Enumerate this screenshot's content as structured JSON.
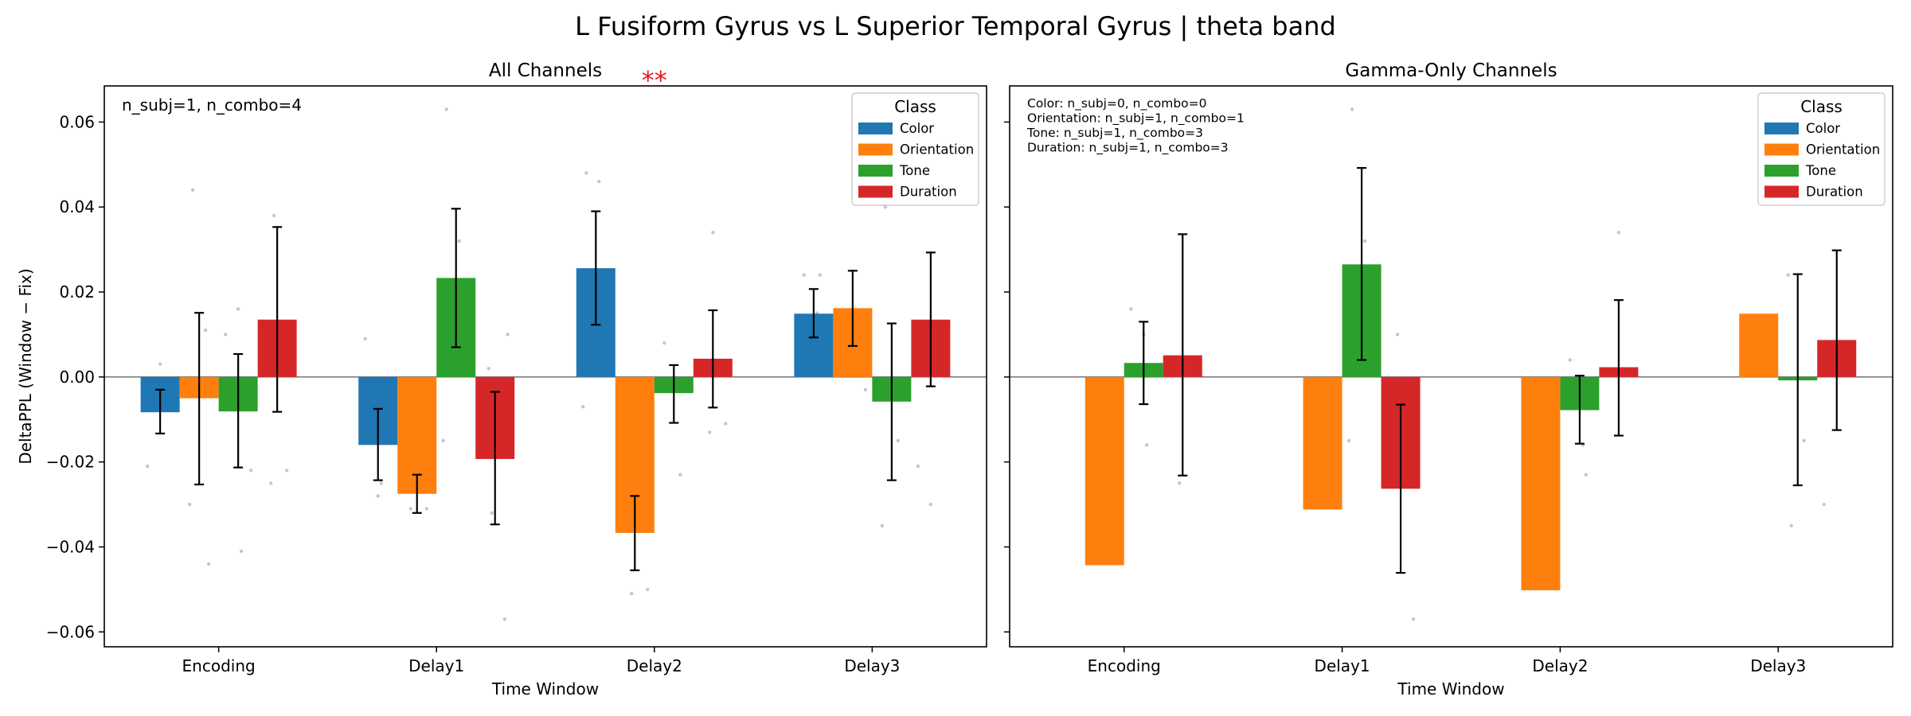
{
  "suptitle": "L Fusiform Gyrus vs L Superior Temporal Gyrus  |  theta band",
  "chart_data": [
    {
      "type": "bar",
      "title": "All Channels",
      "xlabel": "Time Window",
      "ylabel": "DeltaPPL (Window − Fix)",
      "categories": [
        "Encoding",
        "Delay1",
        "Delay2",
        "Delay3"
      ],
      "ylim": [
        -0.0635,
        0.0685
      ],
      "yticks": [
        -0.06,
        -0.04,
        -0.02,
        0.0,
        0.02,
        0.04,
        0.06
      ],
      "ytick_labels": [
        "−0.06",
        "−0.04",
        "−0.02",
        "0.00",
        "0.02",
        "0.04",
        "0.06"
      ],
      "show_ytick_labels": true,
      "legend": {
        "title": "Class",
        "position": "top-right"
      },
      "annotation": [
        "n_subj=1, n_combo=4"
      ],
      "significance": [
        {
          "category": "Delay2",
          "label": "**"
        }
      ],
      "series": [
        {
          "name": "Color",
          "color": "#1f77b4",
          "values": [
            -0.0083,
            -0.016,
            0.0256,
            0.0149
          ],
          "err_low": [
            -0.0133,
            -0.0243,
            0.0123,
            0.0093
          ],
          "err_high": [
            -0.003,
            -0.0075,
            0.039,
            0.0207
          ]
        },
        {
          "name": "Orientation",
          "color": "#ff7f0e",
          "values": [
            -0.005,
            -0.0275,
            -0.0367,
            0.0162
          ],
          "err_low": [
            -0.0253,
            -0.032,
            -0.0455,
            0.0073
          ],
          "err_high": [
            0.0151,
            -0.023,
            -0.028,
            0.025
          ]
        },
        {
          "name": "Tone",
          "color": "#2ca02c",
          "values": [
            -0.0081,
            0.0233,
            -0.0038,
            -0.0058
          ],
          "err_low": [
            -0.0213,
            0.007,
            -0.0108,
            -0.0243
          ],
          "err_high": [
            0.0054,
            0.0396,
            0.0028,
            0.0126
          ]
        },
        {
          "name": "Duration",
          "color": "#d62728",
          "values": [
            0.0135,
            -0.0193,
            0.0043,
            0.0135
          ],
          "err_low": [
            -0.0082,
            -0.0347,
            -0.0072,
            -0.0022
          ],
          "err_high": [
            0.0353,
            -0.0035,
            0.0157,
            0.0293
          ]
        }
      ],
      "points": [
        [
          [
            -0.021,
            0.003
          ],
          [
            -0.044,
            0.044,
            0.011,
            -0.03
          ],
          [
            -0.041,
            0.01,
            0.016,
            -0.022
          ],
          [
            0.038,
            -0.022,
            -0.025
          ]
        ],
        [
          [
            -0.025,
            0.009,
            -0.028
          ],
          [
            -0.026,
            -0.031,
            -0.031
          ],
          [
            0.063,
            0.032,
            -0.015
          ],
          [
            0.01,
            -0.032,
            -0.057,
            0.002
          ]
        ],
        [
          [
            0.048,
            0.046,
            -0.007
          ],
          [
            -0.05,
            -0.051,
            -0.014
          ],
          [
            -0.023,
            0.008
          ],
          [
            0.034,
            -0.011,
            -0.013
          ]
        ],
        [
          [
            0.024,
            0.024,
            0.015
          ],
          [
            0.025,
            -0.003
          ],
          [
            0.04,
            -0.015,
            -0.035
          ],
          [
            -0.021,
            -0.03
          ]
        ]
      ]
    },
    {
      "type": "bar",
      "title": "Gamma-Only Channels",
      "xlabel": "Time Window",
      "ylabel": "",
      "categories": [
        "Encoding",
        "Delay1",
        "Delay2",
        "Delay3"
      ],
      "ylim": [
        -0.0635,
        0.0685
      ],
      "yticks": [
        -0.06,
        -0.04,
        -0.02,
        0.0,
        0.02,
        0.04,
        0.06
      ],
      "show_ytick_labels": false,
      "legend": {
        "title": "Class",
        "position": "top-right"
      },
      "annotation": [
        "Color: n_subj=0, n_combo=0",
        "Orientation: n_subj=1, n_combo=1",
        "Tone: n_subj=1, n_combo=3",
        "Duration: n_subj=1, n_combo=3"
      ],
      "series": [
        {
          "name": "Color",
          "color": "#1f77b4",
          "values": [
            null,
            null,
            null,
            null
          ],
          "err_low": [
            null,
            null,
            null,
            null
          ],
          "err_high": [
            null,
            null,
            null,
            null
          ]
        },
        {
          "name": "Orientation",
          "color": "#ff7f0e",
          "values": [
            -0.0443,
            -0.0312,
            -0.0502,
            0.0149
          ],
          "err_low": [
            null,
            null,
            null,
            null
          ],
          "err_high": [
            null,
            null,
            null,
            null
          ]
        },
        {
          "name": "Tone",
          "color": "#2ca02c",
          "values": [
            0.0033,
            0.0265,
            -0.0078,
            -0.0008
          ],
          "err_low": [
            -0.0064,
            0.004,
            -0.0157,
            -0.0255
          ],
          "err_high": [
            0.013,
            0.0492,
            0.0003,
            0.0242
          ]
        },
        {
          "name": "Duration",
          "color": "#d62728",
          "values": [
            0.0051,
            -0.0263,
            0.0023,
            0.0087
          ],
          "err_low": [
            -0.0232,
            -0.0461,
            -0.0138,
            -0.0125
          ],
          "err_high": [
            0.0336,
            -0.0065,
            0.0181,
            0.0298
          ]
        }
      ],
      "points": [
        [
          [],
          [],
          [
            -0.016,
            0.016,
            0.01
          ],
          [
            -0.025
          ]
        ],
        [
          [],
          [],
          [
            0.063,
            0.032,
            -0.015
          ],
          [
            -0.057,
            0.01
          ]
        ],
        [
          [],
          [],
          [
            -0.023,
            0.004,
            -0.016
          ],
          [
            0.034
          ]
        ],
        [
          [],
          [],
          [
            -0.035,
            -0.015,
            0.024
          ],
          [
            -0.03
          ]
        ]
      ]
    }
  ]
}
